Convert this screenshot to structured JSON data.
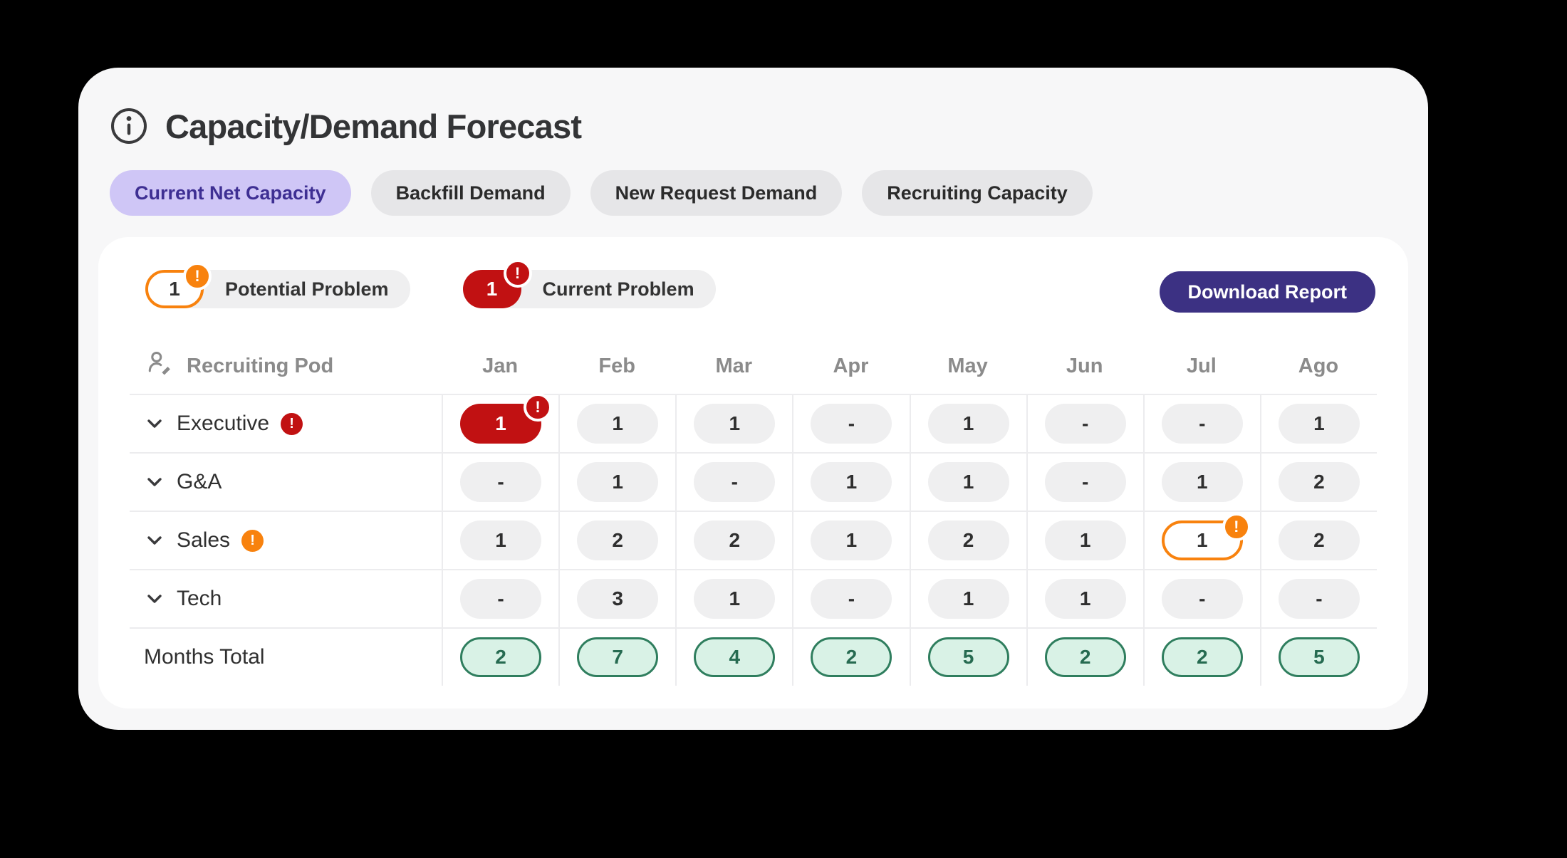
{
  "title": "Capacity/Demand Forecast",
  "tabs": [
    {
      "label": "Current Net Capacity",
      "active": true
    },
    {
      "label": "Backfill Demand",
      "active": false
    },
    {
      "label": "New Request Demand",
      "active": false
    },
    {
      "label": "Recruiting Capacity",
      "active": false
    }
  ],
  "legend": {
    "potential": {
      "count": "1",
      "label": "Potential Problem"
    },
    "current": {
      "count": "1",
      "label": "Current Problem"
    }
  },
  "download_button": "Download Report",
  "table": {
    "pod_column_header": "Recruiting Pod",
    "months": [
      "Jan",
      "Feb",
      "Mar",
      "Apr",
      "May",
      "Jun",
      "Jul",
      "Ago"
    ],
    "rows": [
      {
        "label": "Executive",
        "alert": "current",
        "cells": [
          {
            "value": "1",
            "variant": "current"
          },
          {
            "value": "1"
          },
          {
            "value": "1"
          },
          {
            "value": "-"
          },
          {
            "value": "1"
          },
          {
            "value": "-"
          },
          {
            "value": "-"
          },
          {
            "value": "1"
          }
        ]
      },
      {
        "label": "G&A",
        "alert": null,
        "cells": [
          {
            "value": "-"
          },
          {
            "value": "1"
          },
          {
            "value": "-"
          },
          {
            "value": "1"
          },
          {
            "value": "1"
          },
          {
            "value": "-"
          },
          {
            "value": "1"
          },
          {
            "value": "2"
          }
        ]
      },
      {
        "label": "Sales",
        "alert": "potential",
        "cells": [
          {
            "value": "1"
          },
          {
            "value": "2"
          },
          {
            "value": "2"
          },
          {
            "value": "1"
          },
          {
            "value": "2"
          },
          {
            "value": "1"
          },
          {
            "value": "1",
            "variant": "potential"
          },
          {
            "value": "2"
          }
        ]
      },
      {
        "label": "Tech",
        "alert": null,
        "cells": [
          {
            "value": "-"
          },
          {
            "value": "3"
          },
          {
            "value": "1"
          },
          {
            "value": "-"
          },
          {
            "value": "1"
          },
          {
            "value": "1"
          },
          {
            "value": "-"
          },
          {
            "value": "-"
          }
        ]
      }
    ],
    "total_row": {
      "label": "Months Total",
      "values": [
        "2",
        "7",
        "4",
        "2",
        "5",
        "2",
        "2",
        "5"
      ]
    }
  },
  "colors": {
    "background": "#000000",
    "card_bg": "#f7f7f8",
    "inner_card_bg": "#ffffff",
    "tab_active_bg": "#cfc6f6",
    "tab_active_text": "#3e2f93",
    "tab_inactive_bg": "#e6e6e8",
    "problem_red": "#c11112",
    "problem_orange": "#f8820e",
    "download_button_bg": "#3c3183",
    "total_pill_bg": "#d9f2e6",
    "total_pill_border": "#2f7e5e",
    "total_pill_text": "#266b51",
    "neutral_pill_bg": "#efeff0",
    "header_text": "#8b8b8b"
  }
}
